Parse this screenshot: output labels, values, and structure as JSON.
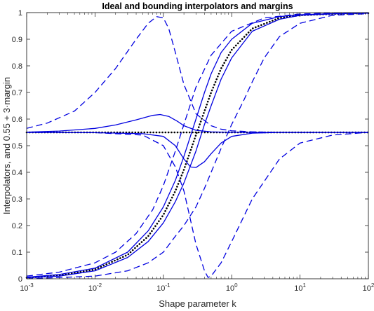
{
  "chart_data": {
    "type": "line",
    "title": "Ideal and bounding interpolators and margins",
    "xlabel": "Shape parameter k",
    "ylabel": "Interpolators, and 0.55 + 3·margin",
    "xscale": "log",
    "xlim": [
      0.001,
      100
    ],
    "ylim": [
      0,
      1
    ],
    "x_ticks": [
      {
        "base": "10",
        "exp": "-3",
        "value": 0.001
      },
      {
        "base": "10",
        "exp": "-2",
        "value": 0.01
      },
      {
        "base": "10",
        "exp": "-1",
        "value": 0.1
      },
      {
        "base": "10",
        "exp": "0",
        "value": 1
      },
      {
        "base": "10",
        "exp": "1",
        "value": 10
      },
      {
        "base": "10",
        "exp": "2",
        "value": 100
      }
    ],
    "y_ticks": [
      "0",
      "0.1",
      "0.2",
      "0.3",
      "0.4",
      "0.5",
      "0.6",
      "0.7",
      "0.8",
      "0.9",
      "1"
    ],
    "grid": false,
    "legend": "none",
    "colors": {
      "series": "#0000e0",
      "ideal": "#000000",
      "axes": "#262626"
    },
    "series": [
      {
        "style": "dotted",
        "color": "#000000",
        "x": [
          0.001,
          0.003,
          0.01,
          0.03,
          0.06,
          0.1,
          0.15,
          0.2,
          0.3,
          0.4,
          0.5,
          0.7,
          1,
          2,
          5,
          10,
          30,
          100
        ],
        "y": [
          0.004,
          0.012,
          0.035,
          0.09,
          0.16,
          0.24,
          0.33,
          0.41,
          0.54,
          0.63,
          0.7,
          0.79,
          0.86,
          0.94,
          0.98,
          0.99,
          0.995,
          0.998
        ]
      },
      {
        "style": "dotted",
        "color": "#000000",
        "x": [
          0.001,
          100
        ],
        "y": [
          0.55,
          0.55
        ]
      },
      {
        "style": "solid",
        "color": "#0000e0",
        "x": [
          0.001,
          0.003,
          0.01,
          0.03,
          0.06,
          0.1,
          0.15,
          0.2,
          0.3,
          0.4,
          0.5,
          0.7,
          1,
          2,
          5,
          10,
          30,
          100
        ],
        "y": [
          0.006,
          0.016,
          0.04,
          0.1,
          0.18,
          0.27,
          0.37,
          0.46,
          0.6,
          0.7,
          0.77,
          0.85,
          0.9,
          0.96,
          0.985,
          0.992,
          0.996,
          0.998
        ]
      },
      {
        "style": "solid",
        "color": "#0000e0",
        "x": [
          0.001,
          0.003,
          0.01,
          0.03,
          0.06,
          0.1,
          0.15,
          0.2,
          0.3,
          0.4,
          0.5,
          0.7,
          1,
          2,
          5,
          10,
          30,
          100
        ],
        "y": [
          0.004,
          0.01,
          0.03,
          0.08,
          0.14,
          0.21,
          0.29,
          0.36,
          0.48,
          0.58,
          0.65,
          0.75,
          0.83,
          0.93,
          0.975,
          0.99,
          0.995,
          0.998
        ]
      },
      {
        "style": "solid",
        "color": "#0000e0",
        "x": [
          0.001,
          0.003,
          0.01,
          0.02,
          0.04,
          0.07,
          0.09,
          0.12,
          0.16,
          0.2,
          0.3,
          0.5,
          1,
          3,
          10,
          100
        ],
        "y": [
          0.551,
          0.555,
          0.565,
          0.578,
          0.597,
          0.614,
          0.617,
          0.61,
          0.592,
          0.575,
          0.558,
          0.552,
          0.55,
          0.55,
          0.55,
          0.55
        ]
      },
      {
        "style": "solid",
        "color": "#0000e0",
        "x": [
          0.001,
          0.01,
          0.05,
          0.1,
          0.15,
          0.2,
          0.25,
          0.3,
          0.4,
          0.5,
          0.7,
          1,
          2,
          5,
          100
        ],
        "y": [
          0.55,
          0.549,
          0.545,
          0.535,
          0.5,
          0.45,
          0.42,
          0.418,
          0.44,
          0.47,
          0.51,
          0.535,
          0.547,
          0.55,
          0.55
        ]
      },
      {
        "style": "dashed",
        "color": "#0000e0",
        "x": [
          0.001,
          0.002,
          0.005,
          0.01,
          0.02,
          0.04,
          0.06,
          0.08,
          0.1,
          0.12,
          0.15,
          0.2,
          0.3,
          0.5,
          0.7,
          1,
          2,
          5,
          10,
          100
        ],
        "y": [
          0.565,
          0.585,
          0.63,
          0.7,
          0.79,
          0.9,
          0.96,
          0.985,
          0.98,
          0.94,
          0.85,
          0.73,
          0.62,
          0.575,
          0.562,
          0.556,
          0.552,
          0.55,
          0.55,
          0.55
        ]
      },
      {
        "style": "dashed",
        "color": "#0000e0",
        "x": [
          0.001,
          0.01,
          0.05,
          0.1,
          0.15,
          0.2,
          0.25,
          0.3,
          0.4,
          0.45,
          0.5,
          0.7,
          1,
          2,
          5,
          10,
          30,
          100
        ],
        "y": [
          0.55,
          0.549,
          0.54,
          0.5,
          0.42,
          0.33,
          0.22,
          0.13,
          0.03,
          0.005,
          0.01,
          0.06,
          0.14,
          0.3,
          0.45,
          0.51,
          0.54,
          0.55
        ]
      },
      {
        "style": "dashed",
        "color": "#0000e0",
        "x": [
          0.001,
          0.003,
          0.01,
          0.02,
          0.04,
          0.07,
          0.1,
          0.15,
          0.2,
          0.3,
          0.5,
          1,
          3,
          10,
          30,
          100
        ],
        "y": [
          0.01,
          0.025,
          0.06,
          0.1,
          0.17,
          0.26,
          0.35,
          0.48,
          0.58,
          0.72,
          0.84,
          0.93,
          0.98,
          0.995,
          0.998,
          1.0
        ]
      },
      {
        "style": "dashed",
        "color": "#0000e0",
        "x": [
          0.001,
          0.01,
          0.03,
          0.06,
          0.1,
          0.15,
          0.2,
          0.3,
          0.4,
          0.5,
          0.7,
          1,
          1.5,
          2,
          3,
          5,
          10,
          30,
          100
        ],
        "y": [
          0.0,
          0.01,
          0.03,
          0.06,
          0.1,
          0.16,
          0.2,
          0.27,
          0.34,
          0.4,
          0.49,
          0.58,
          0.67,
          0.74,
          0.83,
          0.91,
          0.96,
          0.99,
          0.996
        ]
      }
    ]
  }
}
